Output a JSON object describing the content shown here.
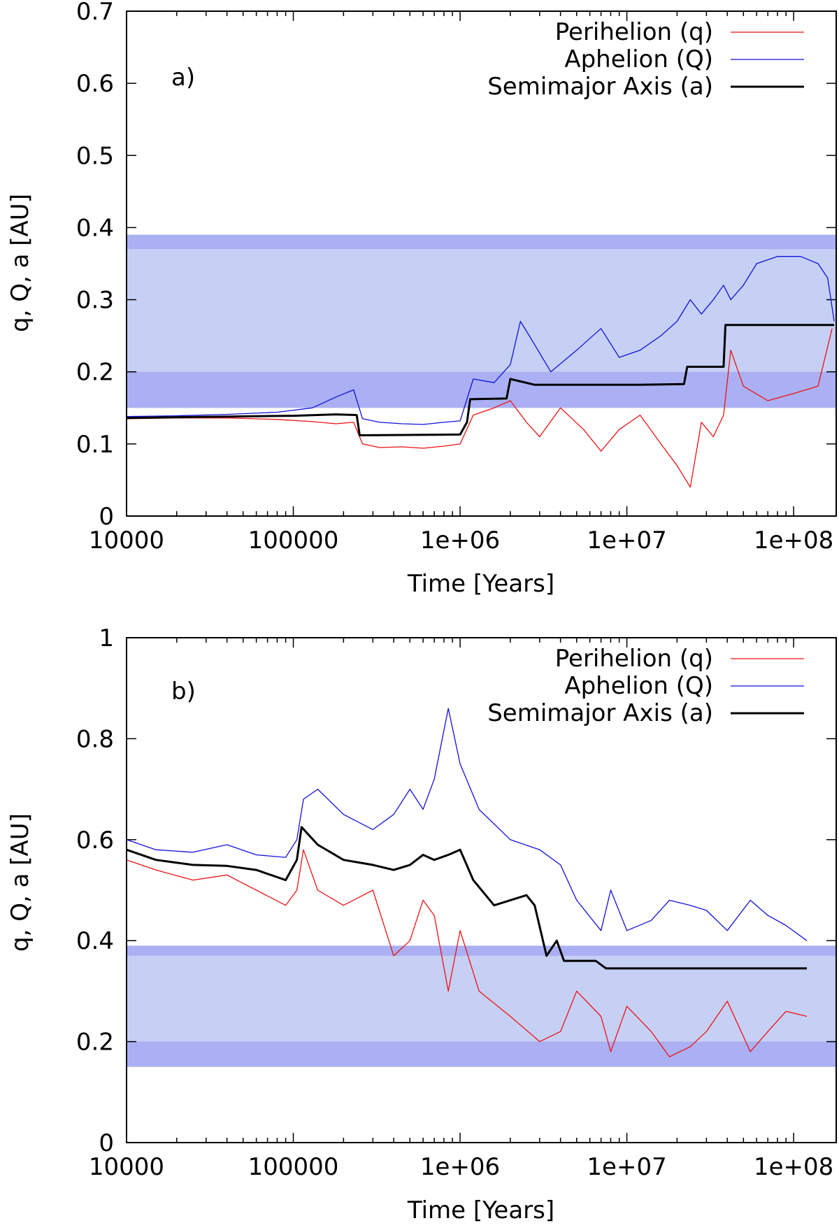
{
  "chart_data": [
    {
      "type": "line",
      "panel_label": "a)",
      "xlabel": "Time [Years]",
      "ylabel": "q, Q, a [AU]",
      "xscale": "log",
      "xlim": [
        10000,
        180000000
      ],
      "ylim": [
        0,
        0.7
      ],
      "xticks": [
        10000,
        100000,
        1000000,
        10000000,
        100000000
      ],
      "xtick_labels": [
        "10000",
        "100000",
        "1e+06",
        "1e+07",
        "1e+08"
      ],
      "yticks": [
        0,
        0.1,
        0.2,
        0.3,
        0.4,
        0.5,
        0.6,
        0.7
      ],
      "ytick_labels": [
        "0",
        "0.1",
        "0.2",
        "0.3",
        "0.4",
        "0.5",
        "0.6",
        "0.7"
      ],
      "bands": [
        {
          "from": 0.15,
          "to": 0.39,
          "color": "#c6d0f5"
        },
        {
          "from": 0.37,
          "to": 0.39,
          "color": "#aab0f3"
        },
        {
          "from": 0.15,
          "to": 0.2,
          "color": "#aab0f3"
        }
      ],
      "legend_position": "top-right",
      "series": [
        {
          "name": "Perihelion (q)",
          "color": "#ee1111",
          "points": [
            [
              10000,
              0.135
            ],
            [
              20000,
              0.136
            ],
            [
              40000,
              0.136
            ],
            [
              80000,
              0.134
            ],
            [
              130000,
              0.131
            ],
            [
              180000,
              0.128
            ],
            [
              230000,
              0.13
            ],
            [
              260000,
              0.1
            ],
            [
              330000,
              0.095
            ],
            [
              450000,
              0.096
            ],
            [
              600000,
              0.094
            ],
            [
              800000,
              0.097
            ],
            [
              1000000,
              0.1
            ],
            [
              1200000,
              0.14
            ],
            [
              1600000,
              0.15
            ],
            [
              2000000,
              0.16
            ],
            [
              2500000,
              0.13
            ],
            [
              3000000,
              0.11
            ],
            [
              4000000,
              0.15
            ],
            [
              5500000,
              0.12
            ],
            [
              7000000,
              0.09
            ],
            [
              9000000,
              0.12
            ],
            [
              12000000,
              0.14
            ],
            [
              16000000,
              0.1
            ],
            [
              20000000,
              0.07
            ],
            [
              24000000,
              0.04
            ],
            [
              28000000,
              0.13
            ],
            [
              33000000,
              0.11
            ],
            [
              38000000,
              0.14
            ],
            [
              42000000,
              0.23
            ],
            [
              50000000,
              0.18
            ],
            [
              70000000,
              0.16
            ],
            [
              100000000,
              0.17
            ],
            [
              140000000,
              0.18
            ],
            [
              170000000,
              0.26
            ]
          ]
        },
        {
          "name": "Aphelion (Q)",
          "color": "#1111dd",
          "points": [
            [
              10000,
              0.138
            ],
            [
              20000,
              0.139
            ],
            [
              40000,
              0.141
            ],
            [
              80000,
              0.144
            ],
            [
              130000,
              0.15
            ],
            [
              180000,
              0.165
            ],
            [
              230000,
              0.175
            ],
            [
              260000,
              0.135
            ],
            [
              330000,
              0.13
            ],
            [
              450000,
              0.128
            ],
            [
              600000,
              0.127
            ],
            [
              800000,
              0.13
            ],
            [
              1000000,
              0.132
            ],
            [
              1200000,
              0.19
            ],
            [
              1600000,
              0.185
            ],
            [
              2000000,
              0.21
            ],
            [
              2300000,
              0.27
            ],
            [
              2600000,
              0.25
            ],
            [
              3500000,
              0.2
            ],
            [
              5000000,
              0.23
            ],
            [
              7000000,
              0.26
            ],
            [
              9000000,
              0.22
            ],
            [
              12000000,
              0.23
            ],
            [
              16000000,
              0.25
            ],
            [
              20000000,
              0.27
            ],
            [
              24000000,
              0.3
            ],
            [
              28000000,
              0.28
            ],
            [
              33000000,
              0.3
            ],
            [
              38000000,
              0.32
            ],
            [
              42000000,
              0.3
            ],
            [
              50000000,
              0.32
            ],
            [
              60000000,
              0.35
            ],
            [
              80000000,
              0.36
            ],
            [
              110000000,
              0.36
            ],
            [
              140000000,
              0.35
            ],
            [
              160000000,
              0.33
            ],
            [
              175000000,
              0.27
            ]
          ]
        },
        {
          "name": "Semimajor Axis (a)",
          "color": "#000000",
          "points": [
            [
              10000,
              0.136
            ],
            [
              40000,
              0.138
            ],
            [
              100000,
              0.139
            ],
            [
              180000,
              0.141
            ],
            [
              240000,
              0.14
            ],
            [
              250000,
              0.112
            ],
            [
              1000000,
              0.113
            ],
            [
              1100000,
              0.13
            ],
            [
              1150000,
              0.162
            ],
            [
              1900000,
              0.163
            ],
            [
              2000000,
              0.19
            ],
            [
              2800000,
              0.182
            ],
            [
              12000000,
              0.182
            ],
            [
              22000000,
              0.183
            ],
            [
              23000000,
              0.207
            ],
            [
              38000000,
              0.207
            ],
            [
              39000000,
              0.265
            ],
            [
              175000000,
              0.265
            ]
          ]
        }
      ]
    },
    {
      "type": "line",
      "panel_label": "b)",
      "xlabel": "Time [Years]",
      "ylabel": "q, Q, a [AU]",
      "xscale": "log",
      "xlim": [
        10000,
        180000000
      ],
      "ylim": [
        0,
        1
      ],
      "xticks": [
        10000,
        100000,
        1000000,
        10000000,
        100000000
      ],
      "xtick_labels": [
        "10000",
        "100000",
        "1e+06",
        "1e+07",
        "1e+08"
      ],
      "yticks": [
        0,
        0.2,
        0.4,
        0.6,
        0.8,
        1
      ],
      "ytick_labels": [
        "0",
        "0.2",
        "0.4",
        "0.6",
        "0.8",
        "1"
      ],
      "bands": [
        {
          "from": 0.15,
          "to": 0.39,
          "color": "#c6d0f5"
        },
        {
          "from": 0.37,
          "to": 0.39,
          "color": "#aab0f3"
        },
        {
          "from": 0.15,
          "to": 0.2,
          "color": "#aab0f3"
        }
      ],
      "legend_position": "top-right",
      "series": [
        {
          "name": "Perihelion (q)",
          "color": "#ee1111",
          "points": [
            [
              10000,
              0.56
            ],
            [
              15000,
              0.54
            ],
            [
              25000,
              0.52
            ],
            [
              40000,
              0.53
            ],
            [
              60000,
              0.5
            ],
            [
              90000,
              0.47
            ],
            [
              105000,
              0.5
            ],
            [
              115000,
              0.58
            ],
            [
              140000,
              0.5
            ],
            [
              200000,
              0.47
            ],
            [
              300000,
              0.5
            ],
            [
              400000,
              0.37
            ],
            [
              500000,
              0.4
            ],
            [
              600000,
              0.48
            ],
            [
              700000,
              0.45
            ],
            [
              850000,
              0.3
            ],
            [
              1000000,
              0.42
            ],
            [
              1300000,
              0.3
            ],
            [
              2000000,
              0.25
            ],
            [
              3000000,
              0.2
            ],
            [
              4000000,
              0.22
            ],
            [
              5000000,
              0.3
            ],
            [
              7000000,
              0.25
            ],
            [
              8000000,
              0.18
            ],
            [
              10000000,
              0.27
            ],
            [
              14000000,
              0.22
            ],
            [
              18000000,
              0.17
            ],
            [
              24000000,
              0.19
            ],
            [
              30000000,
              0.22
            ],
            [
              40000000,
              0.28
            ],
            [
              55000000,
              0.18
            ],
            [
              70000000,
              0.22
            ],
            [
              90000000,
              0.26
            ],
            [
              120000000,
              0.25
            ]
          ]
        },
        {
          "name": "Aphelion (Q)",
          "color": "#1111dd",
          "points": [
            [
              10000,
              0.6
            ],
            [
              15000,
              0.58
            ],
            [
              25000,
              0.575
            ],
            [
              40000,
              0.59
            ],
            [
              60000,
              0.57
            ],
            [
              90000,
              0.565
            ],
            [
              105000,
              0.6
            ],
            [
              115000,
              0.68
            ],
            [
              140000,
              0.7
            ],
            [
              200000,
              0.65
            ],
            [
              300000,
              0.62
            ],
            [
              400000,
              0.65
            ],
            [
              500000,
              0.7
            ],
            [
              600000,
              0.66
            ],
            [
              700000,
              0.72
            ],
            [
              850000,
              0.86
            ],
            [
              1000000,
              0.75
            ],
            [
              1300000,
              0.66
            ],
            [
              2000000,
              0.6
            ],
            [
              3000000,
              0.58
            ],
            [
              4000000,
              0.55
            ],
            [
              5000000,
              0.48
            ],
            [
              7000000,
              0.42
            ],
            [
              8000000,
              0.5
            ],
            [
              10000000,
              0.42
            ],
            [
              14000000,
              0.44
            ],
            [
              18000000,
              0.48
            ],
            [
              24000000,
              0.47
            ],
            [
              30000000,
              0.46
            ],
            [
              40000000,
              0.42
            ],
            [
              55000000,
              0.48
            ],
            [
              70000000,
              0.45
            ],
            [
              90000000,
              0.43
            ],
            [
              120000000,
              0.4
            ]
          ]
        },
        {
          "name": "Semimajor Axis (a)",
          "color": "#000000",
          "points": [
            [
              10000,
              0.58
            ],
            [
              15000,
              0.56
            ],
            [
              25000,
              0.55
            ],
            [
              40000,
              0.548
            ],
            [
              60000,
              0.54
            ],
            [
              90000,
              0.52
            ],
            [
              105000,
              0.56
            ],
            [
              112000,
              0.625
            ],
            [
              140000,
              0.59
            ],
            [
              200000,
              0.56
            ],
            [
              300000,
              0.55
            ],
            [
              400000,
              0.54
            ],
            [
              500000,
              0.55
            ],
            [
              600000,
              0.57
            ],
            [
              700000,
              0.56
            ],
            [
              850000,
              0.57
            ],
            [
              1000000,
              0.58
            ],
            [
              1200000,
              0.52
            ],
            [
              1600000,
              0.47
            ],
            [
              2000000,
              0.48
            ],
            [
              2500000,
              0.49
            ],
            [
              2800000,
              0.47
            ],
            [
              3300000,
              0.37
            ],
            [
              3800000,
              0.4
            ],
            [
              4200000,
              0.36
            ],
            [
              6500000,
              0.36
            ],
            [
              7500000,
              0.345
            ],
            [
              120000000,
              0.345
            ]
          ]
        }
      ]
    }
  ]
}
